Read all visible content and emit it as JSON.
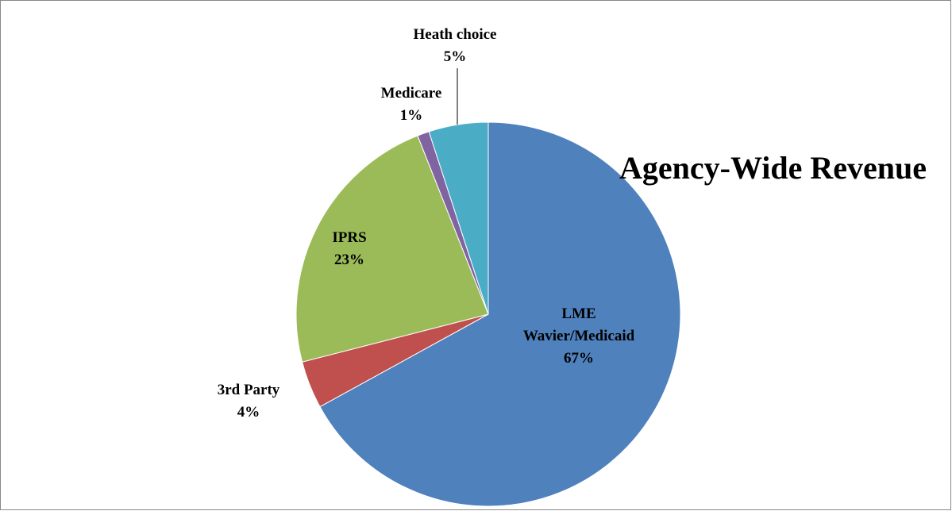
{
  "chart_data": {
    "type": "pie",
    "title": "Agency-Wide Revenue",
    "categories": [
      "LME Wavier/Medicaid",
      "3rd Party",
      "IPRS",
      "Medicare",
      "Heath choice"
    ],
    "values": [
      67,
      4,
      23,
      1,
      5
    ],
    "value_labels": [
      "67%",
      "4%",
      "23%",
      "1%",
      "5%"
    ],
    "colors": [
      "#4f81bd",
      "#c0504d",
      "#9bbb59",
      "#8064a2",
      "#4bacc6"
    ]
  }
}
